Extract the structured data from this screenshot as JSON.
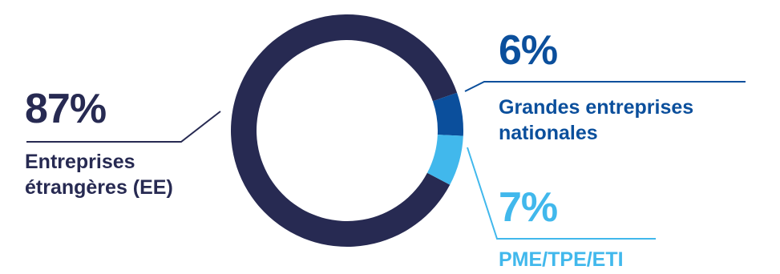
{
  "chart_data": {
    "type": "pie",
    "variant": "donut",
    "categories": [
      "Entreprises étrangères (EE)",
      "Grandes entreprises nationales",
      "PME/TPE/ETI"
    ],
    "values": [
      87,
      6,
      7
    ],
    "labels": [
      "87%",
      "6%",
      "7%"
    ],
    "colors": [
      "#272a52",
      "#0b4f9c",
      "#41b8ec"
    ],
    "legend": "none"
  },
  "labels": {
    "ee": {
      "pct": "87%",
      "line1": "Entreprises",
      "line2": "étrangères (EE)"
    },
    "ge": {
      "pct": "6%",
      "line1": "Grandes entreprises",
      "line2": "nationales"
    },
    "pme": {
      "pct": "7%",
      "line1": "PME/TPE/ETI"
    }
  }
}
